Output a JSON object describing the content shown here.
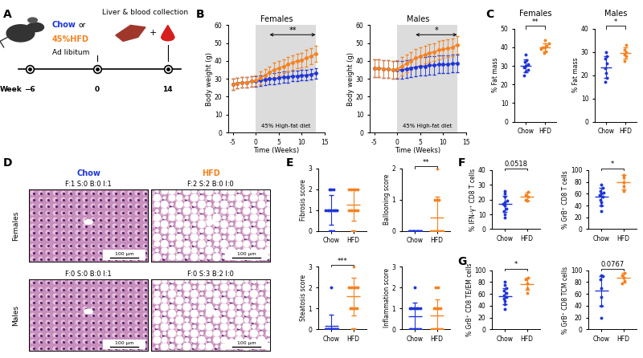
{
  "panel_labels": [
    "A",
    "B",
    "C",
    "D",
    "E",
    "F",
    "G"
  ],
  "schematic": {
    "diet_chow": "Chow",
    "or": "or",
    "diet_hfd": "45%HFD",
    "feeding": "Ad libitum",
    "collection": "Liver & blood collection",
    "plus": "+",
    "timeline_label": "Week",
    "timepoints": [
      "−6",
      "0",
      "14"
    ]
  },
  "histology": {
    "col_labels": [
      "Chow",
      "HFD"
    ],
    "col_colors": [
      "#1f35d6",
      "#f58220"
    ],
    "row_labels": [
      "Females",
      "Males"
    ],
    "scores": [
      [
        "F:1 S:0 B:0 I:1",
        "F:2 S:2 B:0 I:0"
      ],
      [
        "F:0 S:0 B:0 I:1",
        "F:0 S:3 B:2 I:0"
      ]
    ],
    "scale_bar": "100 µm"
  },
  "chart_data": [
    {
      "type": "line",
      "title": "Females",
      "x_label": "Time (Weeks)",
      "y_label": "Body weight (g)",
      "x": [
        -5,
        -4,
        -3,
        -2,
        -1,
        0,
        1,
        2,
        3,
        4,
        5,
        6,
        7,
        8,
        9,
        10,
        11,
        12,
        13
      ],
      "series": [
        {
          "color": "#1f35d6",
          "marker": "o",
          "values": [
            27,
            27.5,
            28,
            28,
            28.5,
            28.5,
            29,
            29.5,
            30,
            30,
            30.5,
            31,
            31,
            31.5,
            31.5,
            32,
            32,
            32.5,
            33
          ],
          "error": [
            3,
            3,
            3,
            3,
            3,
            3,
            3,
            3,
            3,
            3,
            3,
            3,
            3,
            3,
            3,
            3,
            3,
            3,
            3
          ]
        },
        {
          "color": "#f58220",
          "marker": "o",
          "values": [
            27,
            27.5,
            28,
            28,
            28.5,
            29,
            30.5,
            32,
            33.5,
            35,
            36,
            37,
            38,
            39,
            40,
            40.5,
            41.5,
            42.5,
            44
          ],
          "error": [
            3,
            3,
            3,
            3,
            3,
            3,
            3.5,
            3.5,
            3.5,
            4,
            4,
            4,
            4,
            4,
            4,
            4,
            4.5,
            4.5,
            4.5
          ]
        }
      ],
      "xlim": [
        -6,
        15
      ],
      "xticks": [
        -5,
        0,
        5,
        10,
        15
      ],
      "ylim": [
        0,
        60
      ],
      "yticks": [
        0,
        10,
        20,
        30,
        40,
        50,
        60
      ],
      "shaded_range": [
        0,
        13
      ],
      "shaded_label": "45% High-fat diet",
      "significance": {
        "text": "**",
        "x": [
          3,
          13
        ]
      }
    },
    {
      "type": "line",
      "title": "Males",
      "x_label": "Time (Weeks)",
      "y_label": "Body weight (g)",
      "x": [
        -5,
        -4,
        -3,
        -2,
        -1,
        0,
        1,
        2,
        3,
        4,
        5,
        6,
        7,
        8,
        9,
        10,
        11,
        12,
        13
      ],
      "series": [
        {
          "color": "#1f35d6",
          "marker": "o",
          "values": [
            36,
            36,
            35.5,
            35.5,
            35,
            35,
            35,
            35.5,
            36,
            36.5,
            37,
            37,
            37.5,
            37.5,
            38,
            38,
            38,
            38.5,
            38.5
          ],
          "error": [
            5,
            5,
            5,
            5,
            5,
            5,
            5,
            5,
            5,
            5,
            5,
            5,
            5,
            5,
            5,
            5,
            5,
            5,
            5
          ]
        },
        {
          "color": "#f58220",
          "marker": "o",
          "values": [
            36,
            36,
            35.5,
            35.5,
            35,
            35.5,
            37,
            38.5,
            40,
            41.5,
            42.5,
            43.5,
            44.5,
            45,
            46,
            46.5,
            47,
            47.5,
            49
          ],
          "error": [
            5,
            5,
            5,
            5,
            5,
            5,
            5,
            5,
            5,
            5,
            5,
            5,
            5,
            5,
            5,
            5,
            5,
            5,
            5
          ]
        }
      ],
      "xlim": [
        -6,
        15
      ],
      "xticks": [
        -5,
        0,
        5,
        10,
        15
      ],
      "ylim": [
        0,
        60
      ],
      "yticks": [
        0,
        10,
        20,
        30,
        40,
        50,
        60
      ],
      "shaded_range": [
        0,
        13
      ],
      "shaded_label": "45% High-fat diet",
      "significance": {
        "text": "*",
        "x": [
          4,
          13
        ]
      }
    },
    {
      "type": "strip",
      "title": "Females",
      "y_label": "% Fat mass",
      "categories": [
        "Chow",
        "HFD"
      ],
      "colors": [
        "#1f35d6",
        "#f58220"
      ],
      "marker": "o",
      "values": [
        [
          25,
          27,
          28,
          29,
          30,
          31,
          32,
          33,
          36
        ],
        [
          37,
          38,
          39,
          40,
          40,
          41,
          42,
          44
        ]
      ],
      "mean": [
        30,
        40
      ],
      "sd": [
        3.3,
        2.2
      ],
      "ylim": [
        0,
        50
      ],
      "yticks": [
        0,
        10,
        20,
        30,
        40,
        50
      ],
      "significance": "**"
    },
    {
      "type": "strip",
      "title": "Males",
      "y_label": "% Fat mass",
      "categories": [
        "Chow",
        "HFD"
      ],
      "colors": [
        "#1f35d6",
        "#f58220"
      ],
      "marker": "o",
      "values": [
        [
          17,
          19,
          21,
          23,
          25,
          27,
          28,
          30
        ],
        [
          26,
          28,
          29,
          30,
          31,
          33
        ]
      ],
      "mean": [
        23.5,
        29.5
      ],
      "sd": [
        4.6,
        2.4
      ],
      "ylim": [
        0,
        40
      ],
      "yticks": [
        0,
        10,
        20,
        30,
        40
      ],
      "significance": "*"
    },
    {
      "type": "strip",
      "y_label": "Fibrosis score",
      "categories": [
        "Chow",
        "HFD"
      ],
      "colors": [
        "#1f35d6",
        "#f58220"
      ],
      "marker": "o",
      "values": [
        [
          0,
          0,
          0,
          1,
          1,
          1,
          1,
          1,
          1,
          1,
          2,
          2,
          2
        ],
        [
          0,
          0,
          1,
          1,
          1,
          1,
          1,
          2,
          2,
          2,
          2,
          2
        ]
      ],
      "mean": [
        1.0,
        1.25
      ],
      "sd": [
        0.7,
        0.75
      ],
      "ylim": [
        0,
        3
      ],
      "yticks": [
        0,
        1,
        2,
        3
      ]
    },
    {
      "type": "strip",
      "y_label": "Ballooning score",
      "categories": [
        "Chow",
        "HFD"
      ],
      "colors": [
        "#1f35d6",
        "#f58220"
      ],
      "marker": "o",
      "values": [
        [
          0,
          0,
          0,
          0,
          0,
          0,
          0,
          0,
          0,
          0,
          0,
          0,
          0
        ],
        [
          0,
          0,
          0,
          0,
          0,
          0,
          0,
          0,
          1,
          1,
          1,
          2
        ]
      ],
      "mean": [
        0,
        0.42
      ],
      "sd": [
        0,
        0.67
      ],
      "ylim": [
        0,
        2
      ],
      "yticks": [
        0,
        1,
        2
      ],
      "significance": "**"
    },
    {
      "type": "strip",
      "y_label": "Steatosis score",
      "categories": [
        "Chow",
        "HFD"
      ],
      "colors": [
        "#1f35d6",
        "#f58220"
      ],
      "marker": "o",
      "values": [
        [
          0,
          0,
          0,
          0,
          0,
          0,
          0,
          0,
          0,
          0,
          0,
          0,
          2
        ],
        [
          0,
          0,
          1,
          1,
          1,
          1,
          2,
          2,
          2,
          2,
          2,
          3
        ]
      ],
      "mean": [
        0.15,
        1.58
      ],
      "sd": [
        0.55,
        0.9
      ],
      "ylim": [
        0,
        3
      ],
      "yticks": [
        0,
        1,
        2,
        3
      ],
      "significance": "***"
    },
    {
      "type": "strip",
      "y_label": "Inflammation score",
      "categories": [
        "Chow",
        "HFD"
      ],
      "colors": [
        "#1f35d6",
        "#f58220"
      ],
      "marker": "o",
      "values": [
        [
          0,
          0,
          0,
          0,
          0,
          0,
          1,
          1,
          1,
          1,
          1,
          1,
          2
        ],
        [
          0,
          0,
          0,
          0,
          0,
          0,
          1,
          1,
          1,
          1,
          2,
          2
        ]
      ],
      "mean": [
        0.62,
        0.67
      ],
      "sd": [
        0.65,
        0.78
      ],
      "ylim": [
        0,
        3
      ],
      "yticks": [
        0,
        1,
        2,
        3
      ]
    },
    {
      "type": "strip",
      "y_label": "% IFN-γ⁺ CD8 T cells",
      "categories": [
        "Chow",
        "HFD"
      ],
      "colors": [
        "#1f35d6",
        "#f58220"
      ],
      "marker": "o",
      "values": [
        [
          8,
          10,
          12,
          14,
          16,
          17,
          18,
          19,
          22,
          24,
          26
        ],
        [
          19,
          20,
          22,
          23,
          25
        ]
      ],
      "mean": [
        17,
        22
      ],
      "sd": [
        5.5,
        2.5
      ],
      "ylim": [
        0,
        40
      ],
      "yticks": [
        0,
        10,
        20,
        30,
        40
      ],
      "significance": "0.0518"
    },
    {
      "type": "strip",
      "y_label": "% GrB⁺ CD8 T cells",
      "categories": [
        "Chow",
        "HFD"
      ],
      "colors": [
        "#1f35d6",
        "#f58220"
      ],
      "marker": "o",
      "values": [
        [
          30,
          40,
          45,
          50,
          55,
          57,
          60,
          62,
          65,
          70,
          75
        ],
        [
          65,
          72,
          80,
          88,
          92
        ]
      ],
      "mean": [
        55,
        79
      ],
      "sd": [
        15,
        12
      ],
      "ylim": [
        0,
        100
      ],
      "yticks": [
        0,
        20,
        40,
        60,
        80,
        100
      ],
      "significance": "*"
    },
    {
      "type": "strip",
      "y_label": "% GrB⁺ CD8 TE/EM cells",
      "categories": [
        "Chow",
        "HFD"
      ],
      "colors": [
        "#1f35d6",
        "#f58220"
      ],
      "marker": "o",
      "values": [
        [
          35,
          42,
          48,
          52,
          55,
          58,
          62,
          65,
          70,
          75,
          80
        ],
        [
          62,
          70,
          78,
          85,
          88
        ]
      ],
      "mean": [
        56,
        77
      ],
      "sd": [
        14,
        10
      ],
      "ylim": [
        0,
        100
      ],
      "yticks": [
        0,
        20,
        40,
        60,
        80,
        100
      ],
      "significance": "*"
    },
    {
      "type": "strip",
      "y_label": "% GrB⁺ CD8 TCM cells",
      "categories": [
        "Chow",
        "HFD"
      ],
      "colors": [
        "#1f35d6",
        "#f58220"
      ],
      "marker": "o",
      "values": [
        [
          20,
          40,
          55,
          70,
          85,
          90,
          92
        ],
        [
          78,
          82,
          88,
          92,
          95
        ]
      ],
      "mean": [
        65,
        87
      ],
      "sd": [
        25,
        8
      ],
      "ylim": [
        0,
        100
      ],
      "yticks": [
        0,
        20,
        40,
        60,
        80,
        100
      ],
      "significance": "0.0767"
    }
  ]
}
